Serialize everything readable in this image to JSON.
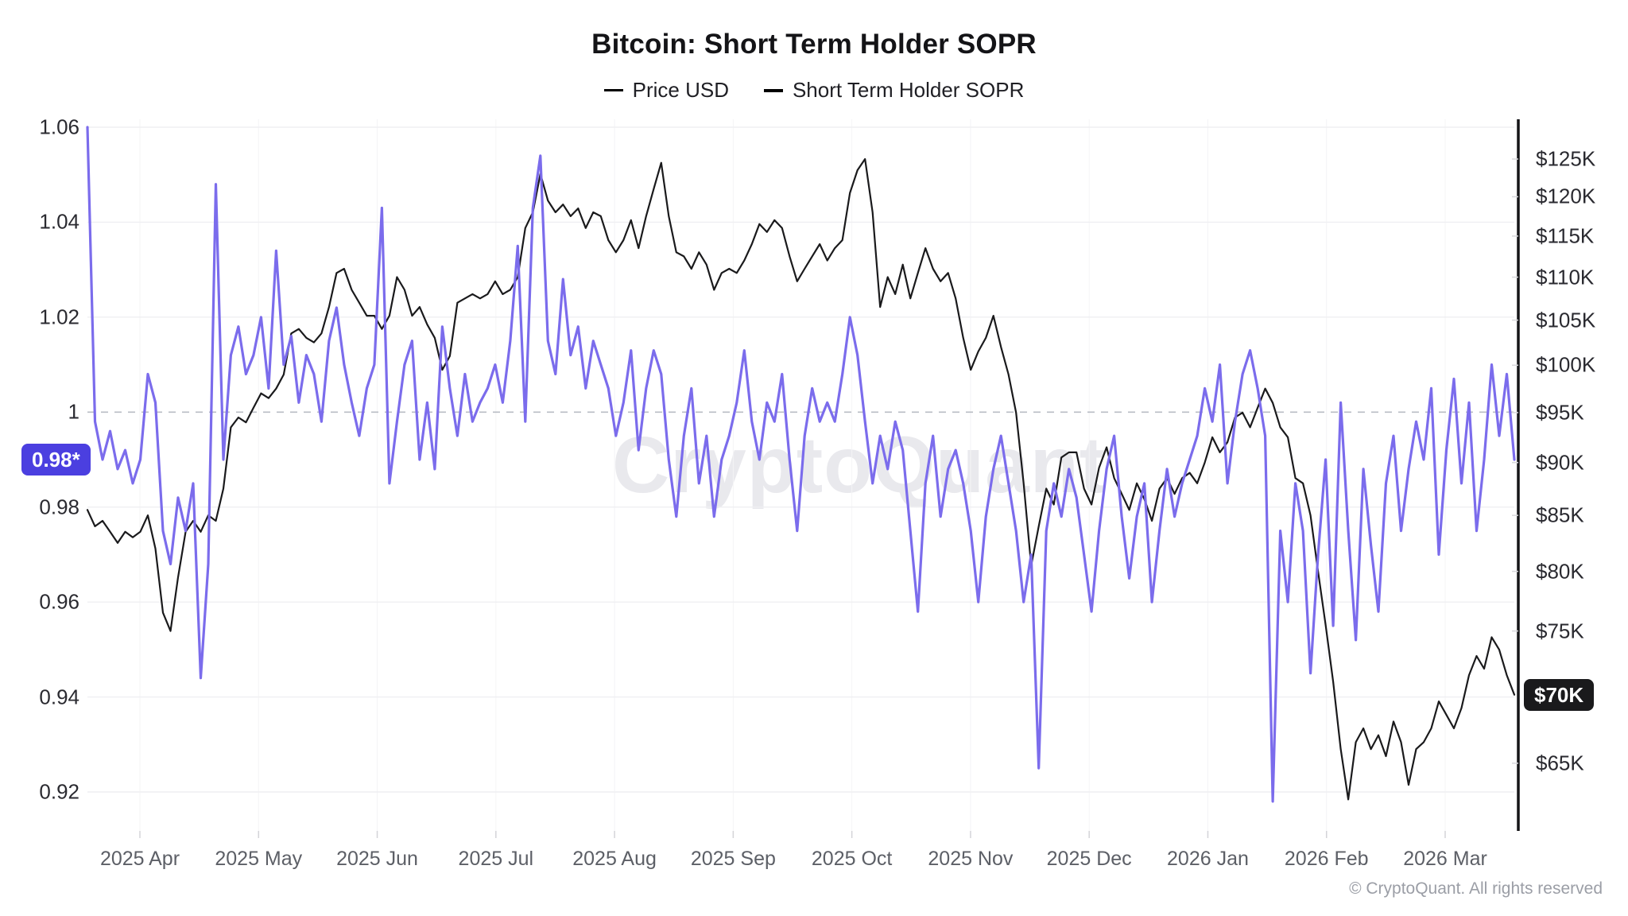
{
  "header": {
    "title": "Bitcoin: Short Term Holder SOPR"
  },
  "legend": {
    "items": [
      {
        "label": "Price USD",
        "color": "#1a1a1c"
      },
      {
        "label": "Short Term Holder SOPR",
        "color": "#7b6cec"
      }
    ]
  },
  "watermark": "CryptoQuant",
  "footer": {
    "copyright": "© CryptoQuant. All rights reserved"
  },
  "chart_data": {
    "type": "line",
    "title": "Bitcoin: Short Term Holder SOPR",
    "grid": true,
    "legend_position": "top",
    "x_tick_labels": [
      "2025 Apr",
      "2025 May",
      "2025 Jun",
      "2025 Jul",
      "2025 Aug",
      "2025 Sep",
      "2025 Oct",
      "2025 Nov",
      "2025 Dec",
      "2026 Jan",
      "2026 Feb",
      "2026 Mar"
    ],
    "left_axis": {
      "name": "Short Term Holder SOPR",
      "scale": "linear",
      "range": [
        0.92,
        1.06
      ],
      "ticks": [
        1.06,
        1.04,
        1.02,
        1,
        0.98,
        0.96,
        0.94,
        0.92
      ],
      "tick_labels": [
        "1.06",
        "1.04",
        "1.02",
        "1",
        "0.98",
        "0.96",
        "0.94",
        "0.92"
      ],
      "current_badge": {
        "text": "0.98*",
        "value": 0.99,
        "color": "#4b3fe0"
      }
    },
    "right_axis": {
      "name": "Price USD",
      "scale": "log",
      "range_thousands": [
        65,
        125
      ],
      "ticks_thousands": [
        125,
        120,
        115,
        110,
        105,
        100,
        95,
        90,
        85,
        80,
        75,
        65
      ],
      "tick_labels": [
        "$125K",
        "$120K",
        "$115K",
        "$110K",
        "$105K",
        "$100K",
        "$95K",
        "$90K",
        "$85K",
        "$80K",
        "$75K",
        "$65K"
      ],
      "current_badge": {
        "text": "$70K",
        "value": 70,
        "color": "#1a1a1c"
      }
    },
    "reference_line": {
      "axis": "left",
      "value": 1,
      "style": "dashed",
      "color": "#b9bdc4"
    },
    "series": [
      {
        "name": "Price USD",
        "axis": "right",
        "unit": "USD thousands",
        "color": "#1a1a1c",
        "values": [
          85.5,
          84.0,
          84.5,
          83.5,
          82.5,
          83.5,
          83.0,
          83.5,
          85.0,
          82.0,
          76.5,
          75.0,
          79.5,
          83.5,
          84.5,
          83.5,
          85.0,
          84.5,
          87.5,
          93.5,
          94.5,
          94.0,
          95.5,
          97.0,
          96.5,
          97.5,
          99.0,
          103.5,
          104.0,
          103.0,
          102.5,
          103.5,
          106.5,
          110.5,
          111.0,
          108.5,
          107.0,
          105.5,
          105.5,
          104.0,
          105.5,
          110.0,
          108.5,
          105.5,
          106.5,
          104.5,
          103.0,
          99.5,
          101.0,
          107.0,
          107.5,
          108.0,
          107.5,
          108.0,
          109.5,
          108.0,
          108.5,
          110.0,
          116.0,
          118.0,
          123.0,
          119.5,
          118.0,
          119.0,
          117.5,
          118.5,
          116.0,
          118.0,
          117.5,
          114.5,
          113.0,
          114.5,
          117.0,
          113.5,
          117.5,
          121.0,
          124.5,
          117.5,
          113.0,
          112.5,
          111.0,
          113.0,
          111.5,
          108.5,
          110.5,
          111.0,
          110.5,
          112.0,
          114.0,
          116.5,
          115.5,
          117.0,
          116.0,
          112.5,
          109.5,
          111.0,
          112.5,
          114.0,
          112.0,
          113.5,
          114.5,
          120.5,
          123.5,
          125.0,
          118.0,
          106.5,
          110.0,
          108.0,
          111.5,
          107.5,
          110.5,
          113.5,
          111.0,
          109.5,
          110.5,
          107.5,
          103.0,
          99.5,
          101.5,
          103.0,
          105.5,
          102.0,
          99.0,
          95.0,
          88.0,
          80.5,
          84.0,
          87.5,
          86.0,
          90.5,
          91.0,
          91.0,
          87.5,
          86.0,
          89.5,
          91.5,
          88.5,
          87.0,
          85.5,
          88.0,
          86.5,
          84.5,
          87.5,
          88.5,
          87.0,
          88.5,
          89.0,
          88.0,
          90.0,
          92.5,
          91.0,
          92.0,
          94.5,
          95.0,
          93.5,
          95.5,
          97.5,
          96.0,
          93.5,
          92.5,
          88.5,
          88.0,
          85.0,
          80.0,
          75.5,
          71.0,
          66.0,
          62.5,
          66.5,
          67.5,
          66.0,
          67.0,
          65.5,
          68.0,
          66.5,
          63.5,
          66.0,
          66.5,
          67.5,
          69.5,
          68.5,
          67.5,
          69.0,
          71.5,
          73.0,
          72.0,
          74.5,
          73.5,
          71.5,
          70.0
        ]
      },
      {
        "name": "Short Term Holder SOPR",
        "axis": "left",
        "unit": "ratio",
        "color": "#7b6cec",
        "values": [
          1.06,
          0.998,
          0.99,
          0.996,
          0.988,
          0.992,
          0.985,
          0.99,
          1.008,
          1.002,
          0.975,
          0.968,
          0.982,
          0.975,
          0.985,
          0.944,
          0.968,
          1.048,
          0.99,
          1.012,
          1.018,
          1.008,
          1.012,
          1.02,
          1.005,
          1.034,
          1.01,
          1.016,
          1.002,
          1.012,
          1.008,
          0.998,
          1.015,
          1.022,
          1.01,
          1.002,
          0.995,
          1.005,
          1.01,
          1.043,
          0.985,
          0.998,
          1.01,
          1.015,
          0.99,
          1.002,
          0.988,
          1.018,
          1.005,
          0.995,
          1.008,
          0.998,
          1.002,
          1.005,
          1.01,
          1.002,
          1.015,
          1.035,
          0.998,
          1.043,
          1.054,
          1.015,
          1.008,
          1.028,
          1.012,
          1.018,
          1.005,
          1.015,
          1.01,
          1.005,
          0.995,
          1.002,
          1.013,
          0.992,
          1.005,
          1.013,
          1.008,
          0.99,
          0.978,
          0.995,
          1.005,
          0.985,
          0.995,
          0.978,
          0.99,
          0.995,
          1.002,
          1.013,
          0.998,
          0.99,
          1.002,
          0.998,
          1.008,
          0.99,
          0.975,
          0.995,
          1.005,
          0.998,
          1.002,
          0.998,
          1.008,
          1.02,
          1.012,
          0.998,
          0.985,
          0.995,
          0.988,
          0.998,
          0.992,
          0.975,
          0.958,
          0.985,
          0.995,
          0.978,
          0.988,
          0.992,
          0.985,
          0.975,
          0.96,
          0.978,
          0.988,
          0.995,
          0.985,
          0.975,
          0.96,
          0.97,
          0.925,
          0.975,
          0.985,
          0.978,
          0.988,
          0.982,
          0.97,
          0.958,
          0.975,
          0.988,
          0.995,
          0.978,
          0.965,
          0.978,
          0.985,
          0.96,
          0.975,
          0.988,
          0.978,
          0.985,
          0.99,
          0.995,
          1.005,
          0.998,
          1.01,
          0.985,
          0.998,
          1.008,
          1.013,
          1.005,
          0.995,
          0.918,
          0.975,
          0.96,
          0.985,
          0.975,
          0.945,
          0.97,
          0.99,
          0.955,
          1.002,
          0.975,
          0.952,
          0.988,
          0.972,
          0.958,
          0.985,
          0.995,
          0.975,
          0.988,
          0.998,
          0.99,
          1.005,
          0.97,
          0.992,
          1.007,
          0.985,
          1.002,
          0.975,
          0.99,
          1.01,
          0.995,
          1.008,
          0.99
        ]
      }
    ]
  }
}
